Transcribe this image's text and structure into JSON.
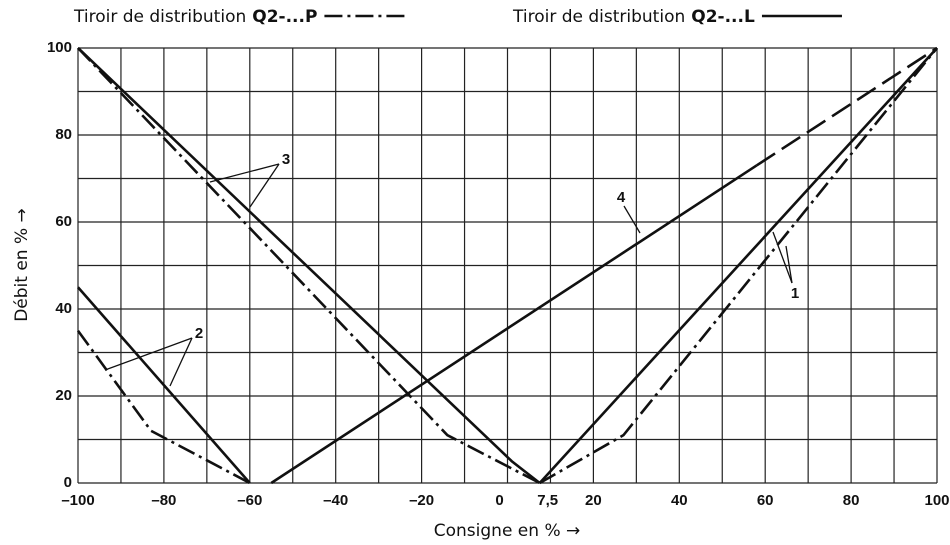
{
  "chart_data": {
    "type": "line",
    "legend": [
      {
        "text": "Tiroir de distribution",
        "bold": "Q2-...P",
        "style": "dashdot"
      },
      {
        "text": "Tiroir de distribution",
        "bold": "Q2-...L",
        "style": "solid"
      }
    ],
    "xlabel": "Consigne en % →",
    "ylabel": "Débit en % →",
    "xlim": [
      -100,
      100
    ],
    "ylim": [
      0,
      100
    ],
    "xticks": [
      {
        "value": -100,
        "label": "–100"
      },
      {
        "value": -80,
        "label": "–80"
      },
      {
        "value": -60,
        "label": "–60"
      },
      {
        "value": -40,
        "label": "–40"
      },
      {
        "value": -20,
        "label": "–20"
      },
      0,
      {
        "value": 7.5,
        "label": "7,5"
      },
      20,
      40,
      60,
      80,
      100
    ],
    "yticks": [
      0,
      20,
      40,
      60,
      80,
      100
    ],
    "minor_xticks": [
      -90,
      -70,
      -50,
      -30,
      -10,
      10,
      30,
      50,
      70,
      90
    ],
    "minor_yticks": [
      10,
      30,
      50,
      70,
      90
    ],
    "grid": true,
    "color": "#111111",
    "series": [
      {
        "style": "solid",
        "x": [
          7.5,
          100
        ],
        "values": [
          0,
          100
        ]
      },
      {
        "style": "dashdot",
        "x": [
          7.5,
          27,
          100
        ],
        "values": [
          0,
          11,
          100
        ]
      },
      {
        "style": "solid",
        "x": [
          -100,
          -60
        ],
        "values": [
          45,
          0
        ]
      },
      {
        "style": "dashdot",
        "x": [
          -100,
          -83,
          -60
        ],
        "values": [
          35,
          12,
          0
        ]
      },
      {
        "style": "solid",
        "x": [
          -100,
          1,
          7.5
        ],
        "values": [
          100,
          5,
          0
        ]
      },
      {
        "style": "dashdot",
        "x": [
          -100,
          -14,
          7.5
        ],
        "values": [
          100,
          11,
          0
        ]
      },
      {
        "style": "solid",
        "x": [
          -55,
          58
        ],
        "values": [
          0,
          73
        ]
      },
      {
        "style": "dashed",
        "x": [
          58,
          100
        ],
        "values": [
          73,
          100
        ]
      }
    ],
    "annotations": [
      "1",
      "2",
      "3",
      "4"
    ]
  }
}
